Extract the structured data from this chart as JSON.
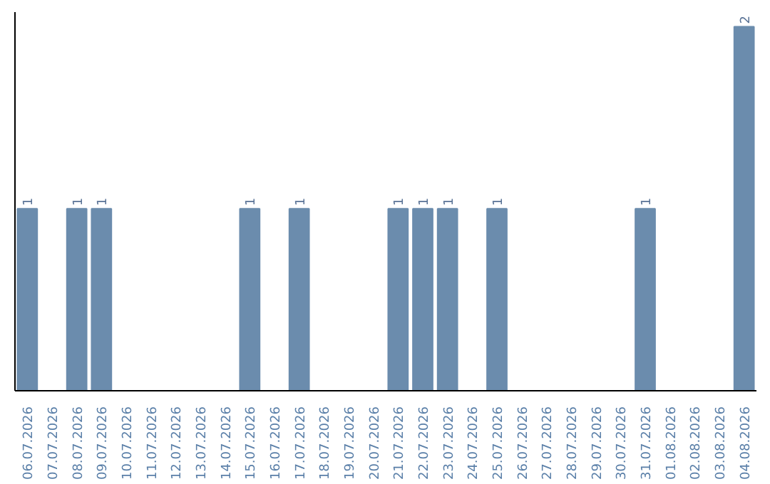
{
  "chart_data": {
    "type": "bar",
    "categories": [
      "06.07.2026",
      "07.07.2026",
      "08.07.2026",
      "09.07.2026",
      "10.07.2026",
      "11.07.2026",
      "12.07.2026",
      "13.07.2026",
      "14.07.2026",
      "15.07.2026",
      "16.07.2026",
      "17.07.2026",
      "18.07.2026",
      "19.07.2026",
      "20.07.2026",
      "21.07.2026",
      "22.07.2026",
      "23.07.2026",
      "24.07.2026",
      "25.07.2026",
      "26.07.2026",
      "27.07.2026",
      "28.07.2026",
      "29.07.2026",
      "30.07.2026",
      "31.07.2026",
      "01.08.2026",
      "02.08.2026",
      "03.08.2026",
      "04.08.2026"
    ],
    "values": [
      1,
      0,
      1,
      1,
      0,
      0,
      0,
      0,
      0,
      1,
      0,
      1,
      0,
      0,
      0,
      1,
      1,
      1,
      0,
      1,
      0,
      0,
      0,
      0,
      0,
      1,
      0,
      0,
      0,
      2
    ],
    "value_labels": [
      "1",
      null,
      "1",
      "1",
      null,
      null,
      null,
      null,
      null,
      "1",
      null,
      "1",
      null,
      null,
      null,
      "1",
      "1",
      "1",
      null,
      "1",
      null,
      null,
      null,
      null,
      null,
      "1",
      null,
      null,
      null,
      "2"
    ],
    "color": "#6b8cad",
    "grid": false
  }
}
